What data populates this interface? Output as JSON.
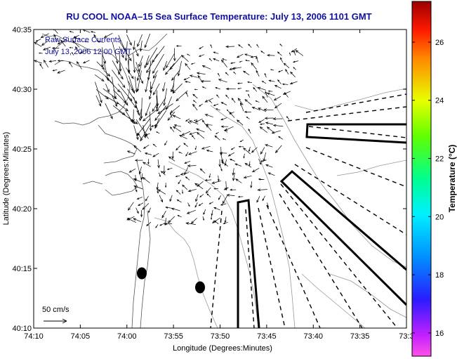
{
  "title": "RU COOL  NOAA–15  Sea Surface Temperature:  July 13, 2006 1101 GMT",
  "legend": {
    "line1": "Raw Surface Currents",
    "line2": "July 13, 2006 12:00 GMT"
  },
  "scale_label": "50 cm/s",
  "map": {
    "xlabel": "Longitude (Degrees:Minutes)",
    "ylabel": "Latitude (Degrees:Minutes)",
    "x_ticks": [
      "74:10",
      "74:05",
      "74:00",
      "73:55",
      "73:50",
      "73:45",
      "73:40",
      "73:35",
      "73:3"
    ],
    "y_ticks": [
      "40:35",
      "40:30",
      "40:25",
      "40:20",
      "40:15",
      "40:10"
    ]
  },
  "colorbar": {
    "label": "Temperature (°C)",
    "ticks": [
      "26",
      "24",
      "22",
      "20",
      "18",
      "16"
    ],
    "range": [
      15.2,
      27.4
    ]
  }
}
